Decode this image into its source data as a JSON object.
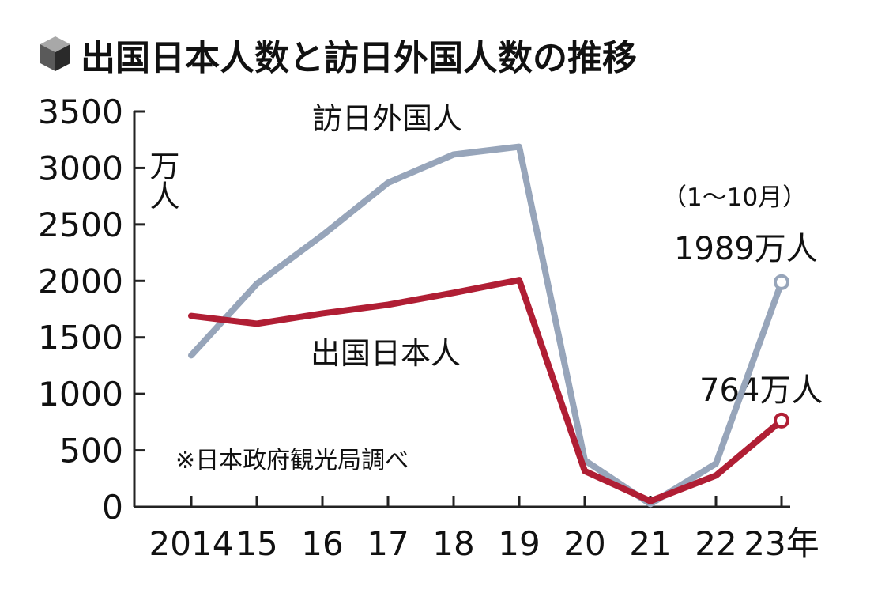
{
  "chart_data": {
    "type": "line",
    "title": "出国日本人数と訪日外国人数の推移",
    "ylabel": "万人",
    "ylim": [
      0,
      3500
    ],
    "yticks": [
      0,
      500,
      1000,
      1500,
      2000,
      2500,
      3000,
      3500
    ],
    "x": [
      "2014",
      "15",
      "16",
      "17",
      "18",
      "19",
      "20",
      "21",
      "22",
      "23年"
    ],
    "series": [
      {
        "name": "訪日外国人",
        "color": "#97a5ba",
        "values": [
          1341,
          1974,
          2404,
          2869,
          3119,
          3188,
          412,
          25,
          383,
          1989
        ]
      },
      {
        "name": "出国日本人",
        "color": "#b01e34",
        "values": [
          1690,
          1621,
          1712,
          1789,
          1895,
          2008,
          317,
          51,
          277,
          764
        ]
      }
    ],
    "annotations": {
      "period_note": "（1〜10月）",
      "foreign_last": "1989万人",
      "japanese_last": "764万人",
      "source": "※日本政府観光局調べ"
    },
    "grid": false
  }
}
